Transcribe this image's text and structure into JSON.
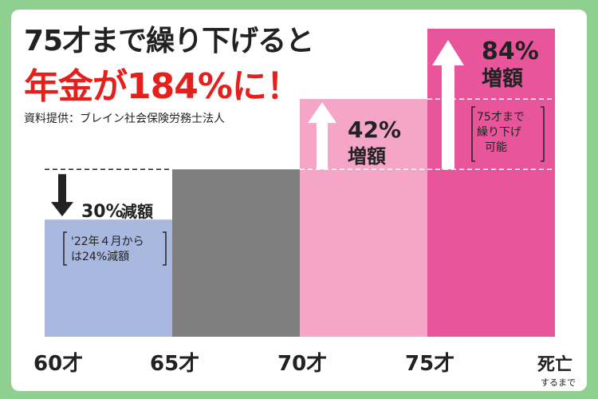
{
  "header": {
    "title_line1": "75才まで繰り下げると",
    "title_line2": "年金が184%に！",
    "source": "資料提供：ブレイン社会保険労務士法人"
  },
  "colors": {
    "background": "#8fcf8f",
    "bar_60": "#a9b8de",
    "bar_65": "#7f7f7f",
    "bar_70": "#f5a6c8",
    "bar_75": "#e8559a",
    "title_red": "#e4201d"
  },
  "annotations": {
    "reduction": {
      "value": "30%",
      "label": "減額",
      "note_line1": "'22年４月から",
      "note_line2": "は24%減額"
    },
    "increase_42": {
      "value": "42%",
      "label": "増額"
    },
    "increase_84": {
      "value": "84%",
      "label": "増額",
      "note_line1": "75才まで",
      "note_line2": "繰り下げ",
      "note_line3": "可能"
    }
  },
  "chart_data": {
    "type": "bar",
    "categories": [
      "60才",
      "65才",
      "70才",
      "75才"
    ],
    "values": [
      70,
      100,
      142,
      184
    ],
    "value_labels": [
      "30%減額",
      "",
      "42%増額",
      "84%増額"
    ],
    "x_ticks": [
      "60才",
      "65才",
      "70才",
      "75才",
      "死亡"
    ],
    "x_end_sublabel": "するまで",
    "ylim": [
      0,
      184
    ],
    "grid": false
  }
}
